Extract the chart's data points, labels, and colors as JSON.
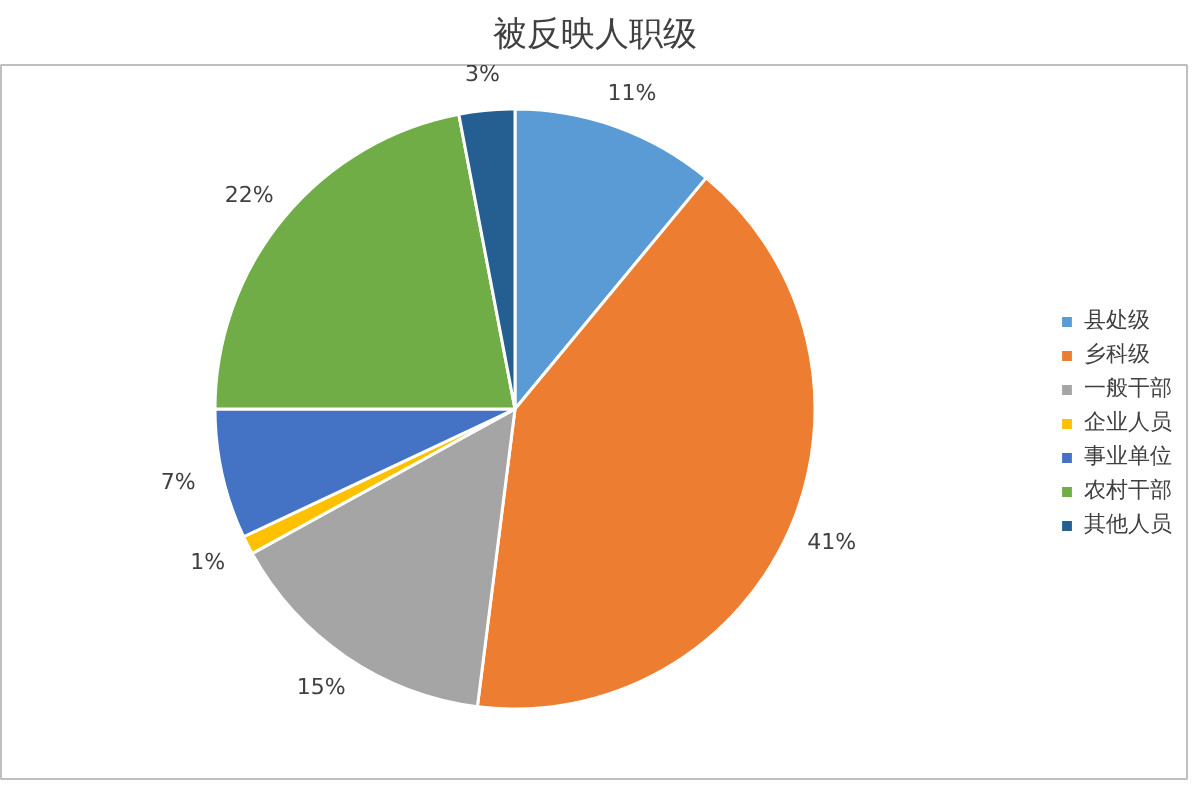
{
  "chart_data": {
    "type": "pie",
    "title": "被反映人职级",
    "categories": [
      "县处级",
      "乡科级",
      "一般干部",
      "企业人员",
      "事业单位",
      "农村干部",
      "其他人员"
    ],
    "values": [
      11,
      41,
      15,
      1,
      7,
      22,
      3
    ],
    "colors": [
      "#5b9bd5",
      "#ed7d31",
      "#a5a5a5",
      "#ffc000",
      "#4472c4",
      "#70ad47",
      "#255e91"
    ],
    "value_labels": [
      "11%",
      "41%",
      "15%",
      "1%",
      "7%",
      "22%",
      "3%"
    ],
    "legend": "right"
  }
}
